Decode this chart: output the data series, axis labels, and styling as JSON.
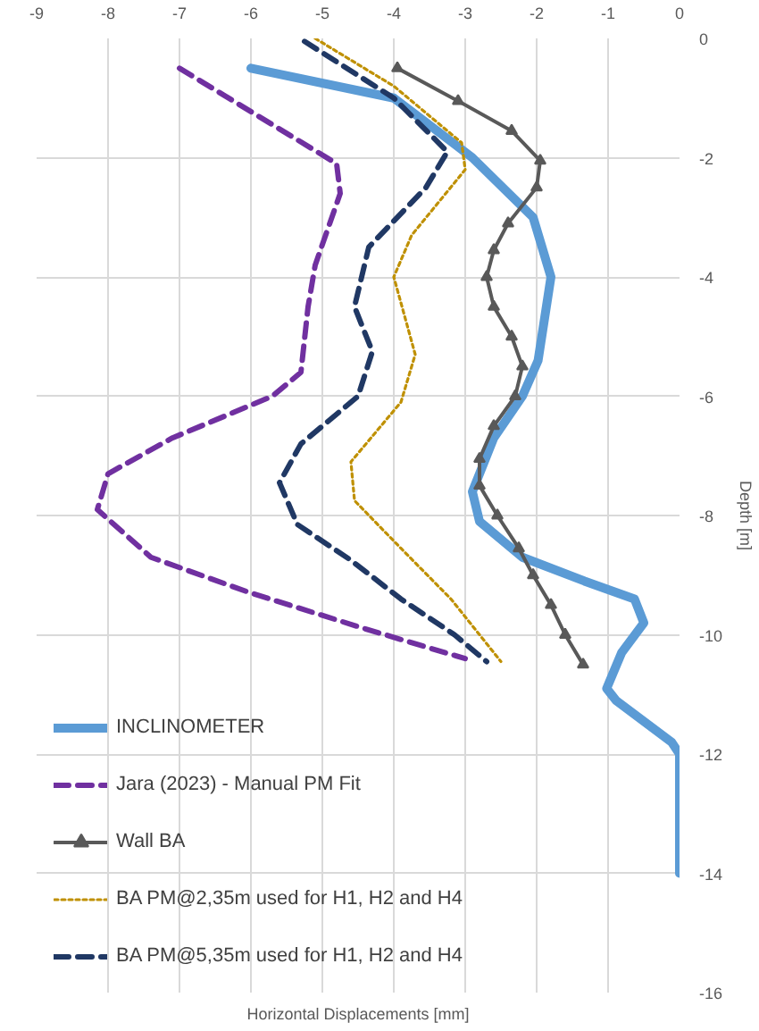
{
  "chart_data": {
    "type": "line",
    "xlabel": "Horizontal Displacements [mm]",
    "ylabel": "Depth [m]",
    "xlim": [
      -9,
      0
    ],
    "ylim": [
      -16,
      0
    ],
    "xticks": [
      -9,
      -8,
      -7,
      -6,
      -5,
      -4,
      -3,
      -2,
      -1,
      0
    ],
    "yticks": [
      0,
      -2,
      -4,
      -6,
      -8,
      -10,
      -12,
      -14,
      -16
    ],
    "grid": true,
    "legend": "bottom left",
    "marker": "none",
    "series": [
      {
        "name": "INCLINOMETER",
        "color": "#5b9bd5",
        "line_style": "solid",
        "x": [
          -6.0,
          -4.0,
          -2.9,
          -2.05,
          -1.8,
          -1.98,
          -2.2,
          -2.6,
          -2.9,
          -2.8,
          -2.2,
          -1.33,
          -0.63,
          -0.5,
          -0.81,
          -1.02,
          -0.89,
          -0.11,
          0,
          0
        ],
        "values": [
          -0.5,
          -1.0,
          -2.0,
          -3.0,
          -4.0,
          -5.4,
          -6.0,
          -6.7,
          -7.6,
          -8.1,
          -8.7,
          -9.1,
          -9.4,
          -9.8,
          -10.3,
          -10.9,
          -11.1,
          -11.8,
          -12.0,
          -14.0
        ]
      },
      {
        "name": "Jara (2023) - Manual PM Fit",
        "color": "#7030a0",
        "line_style": "dashed",
        "x": [
          -7.0,
          -4.8,
          -4.75,
          -5.1,
          -5.2,
          -5.3,
          -5.7,
          -7.1,
          -8.0,
          -8.15,
          -7.4,
          -6.0,
          -4.4,
          -3.0
        ],
        "values": [
          -0.5,
          -2.1,
          -2.6,
          -3.8,
          -4.5,
          -5.6,
          -6.0,
          -6.7,
          -7.3,
          -7.9,
          -8.7,
          -9.3,
          -9.9,
          -10.4
        ]
      },
      {
        "name": "Wall BA",
        "color": "#595959",
        "line_style": "solid",
        "marker": "triangle",
        "x": [
          -3.95,
          -3.1,
          -2.35,
          -1.95,
          -2.0,
          -2.4,
          -2.6,
          -2.7,
          -2.6,
          -2.35,
          -2.2,
          -2.3,
          -2.6,
          -2.8,
          -2.8,
          -2.55,
          -2.25,
          -2.05,
          -1.8,
          -1.6,
          -1.35
        ],
        "values": [
          -0.5,
          -1.05,
          -1.55,
          -2.05,
          -2.5,
          -3.1,
          -3.55,
          -4.0,
          -4.5,
          -5.0,
          -5.5,
          -6.0,
          -6.5,
          -7.05,
          -7.5,
          -8.0,
          -8.55,
          -9.0,
          -9.5,
          -10.0,
          -10.5
        ]
      },
      {
        "name": "BA PM@2,35m used for H1, H2 and H4",
        "color": "#bf9000",
        "line_style": "dotted",
        "x": [
          -5.1,
          -4.0,
          -3.05,
          -3.0,
          -3.75,
          -4.0,
          -3.7,
          -3.9,
          -4.6,
          -4.55,
          -3.9,
          -3.2,
          -2.5
        ],
        "values": [
          0,
          -0.8,
          -1.75,
          -2.2,
          -3.3,
          -4.0,
          -5.3,
          -6.1,
          -7.1,
          -7.75,
          -8.55,
          -9.4,
          -10.45
        ]
      },
      {
        "name": "BA PM@5,35m used for H1, H2 and H4",
        "color": "#203864",
        "line_style": "dashed",
        "x": [
          -5.25,
          -4.0,
          -3.25,
          -3.55,
          -4.35,
          -4.55,
          -4.3,
          -4.5,
          -5.3,
          -5.6,
          -5.35,
          -4.6,
          -3.9,
          -3.15,
          -2.7
        ],
        "values": [
          -0.05,
          -1.0,
          -1.9,
          -2.5,
          -3.5,
          -4.5,
          -5.25,
          -6.0,
          -6.8,
          -7.45,
          -8.15,
          -8.75,
          -9.4,
          -10.0,
          -10.45
        ]
      }
    ]
  }
}
